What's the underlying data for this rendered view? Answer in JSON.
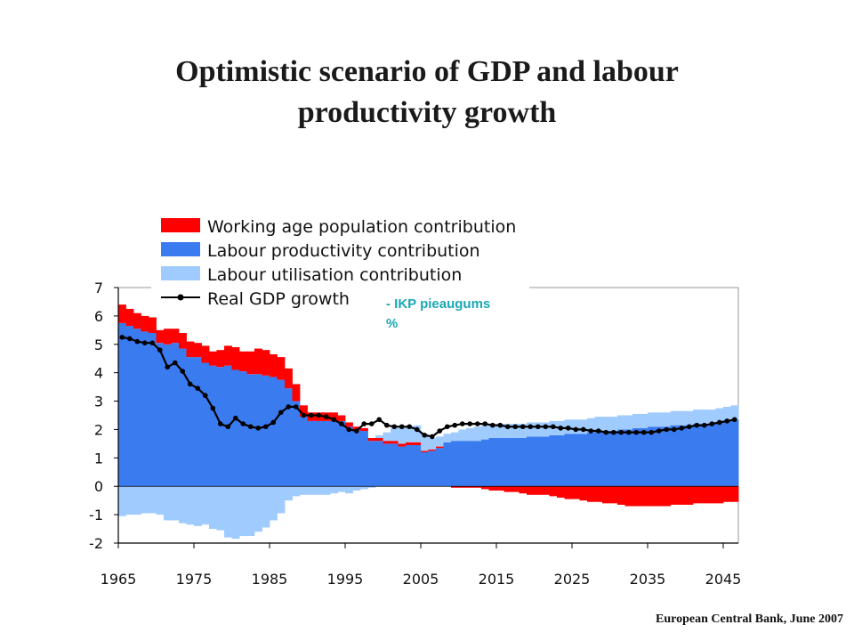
{
  "header": {
    "title_line1": "Optimistic scenario of  GDP and labour",
    "title_line2": "productivity growth"
  },
  "footer": {
    "source": "European Central Bank, June 2007"
  },
  "overlay": {
    "line1": "- IKP pieaugums",
    "line2": "%"
  },
  "colors": {
    "working_age": "#ff0000",
    "labour_productivity": "#3b7bf0",
    "labour_utilisation": "#9fcbff",
    "gdp_line": "#000000"
  },
  "chart_data": {
    "type": "bar",
    "title": "",
    "xlabel": "",
    "ylabel": "",
    "ylim": [
      -2,
      7
    ],
    "x_ticks": [
      1965,
      1975,
      1985,
      1995,
      2005,
      2015,
      2025,
      2035,
      2045
    ],
    "y_ticks": [
      7,
      6,
      5,
      4,
      3,
      2,
      1,
      0,
      -1,
      -2
    ],
    "legend_position": "top-left",
    "categories": [
      1965,
      1966,
      1967,
      1968,
      1969,
      1970,
      1971,
      1972,
      1973,
      1974,
      1975,
      1976,
      1977,
      1978,
      1979,
      1980,
      1981,
      1982,
      1983,
      1984,
      1985,
      1986,
      1987,
      1988,
      1989,
      1990,
      1991,
      1992,
      1993,
      1994,
      1995,
      1996,
      1997,
      1998,
      1999,
      2000,
      2001,
      2002,
      2003,
      2004,
      2005,
      2006,
      2007,
      2008,
      2009,
      2010,
      2011,
      2012,
      2013,
      2014,
      2015,
      2016,
      2017,
      2018,
      2019,
      2020,
      2021,
      2022,
      2023,
      2024,
      2025,
      2026,
      2027,
      2028,
      2029,
      2030,
      2031,
      2032,
      2033,
      2034,
      2035,
      2036,
      2037,
      2038,
      2039,
      2040,
      2041,
      2042,
      2043,
      2044,
      2045,
      2046
    ],
    "series": [
      {
        "name": "Working age population contribution",
        "kind": "stacked-bar",
        "values": [
          0.65,
          0.6,
          0.55,
          0.55,
          0.55,
          0.45,
          0.55,
          0.5,
          0.55,
          0.55,
          0.5,
          0.6,
          0.5,
          0.6,
          0.7,
          0.8,
          0.7,
          0.8,
          0.9,
          0.9,
          0.8,
          0.8,
          0.7,
          0.6,
          0.4,
          0.3,
          0.3,
          0.3,
          0.3,
          0.2,
          0.15,
          0.1,
          0.1,
          0.1,
          0.1,
          0.1,
          0.1,
          0.1,
          0.1,
          0.1,
          0.05,
          0.05,
          0.05,
          0.0,
          -0.05,
          -0.05,
          -0.05,
          -0.05,
          -0.1,
          -0.15,
          -0.15,
          -0.2,
          -0.2,
          -0.25,
          -0.3,
          -0.3,
          -0.3,
          -0.35,
          -0.4,
          -0.45,
          -0.45,
          -0.5,
          -0.55,
          -0.55,
          -0.6,
          -0.6,
          -0.65,
          -0.7,
          -0.7,
          -0.7,
          -0.7,
          -0.7,
          -0.7,
          -0.65,
          -0.65,
          -0.65,
          -0.6,
          -0.6,
          -0.6,
          -0.6,
          -0.55,
          -0.55
        ]
      },
      {
        "name": "Labour productivity contribution",
        "kind": "stacked-bar",
        "values": [
          5.75,
          5.65,
          5.55,
          5.45,
          5.4,
          5.05,
          5.0,
          5.05,
          4.85,
          4.55,
          4.55,
          4.35,
          4.25,
          4.2,
          4.25,
          4.1,
          4.05,
          3.95,
          3.95,
          3.9,
          3.85,
          3.75,
          3.45,
          3.0,
          2.45,
          2.3,
          2.3,
          2.3,
          2.3,
          2.3,
          2.1,
          2.0,
          1.95,
          1.6,
          1.6,
          1.5,
          1.5,
          1.4,
          1.45,
          1.45,
          1.2,
          1.25,
          1.35,
          1.55,
          1.6,
          1.6,
          1.6,
          1.6,
          1.65,
          1.7,
          1.7,
          1.7,
          1.7,
          1.7,
          1.75,
          1.75,
          1.75,
          1.8,
          1.8,
          1.85,
          1.85,
          1.85,
          1.9,
          1.95,
          1.95,
          1.95,
          2.0,
          2.0,
          2.05,
          2.05,
          2.1,
          2.1,
          2.1,
          2.15,
          2.15,
          2.15,
          2.2,
          2.2,
          2.2,
          2.25,
          2.3,
          2.35
        ]
      },
      {
        "name": "Labour utilisation contribution",
        "kind": "stacked-bar",
        "values": [
          -1.05,
          -1.0,
          -1.0,
          -0.95,
          -0.95,
          -1.0,
          -1.2,
          -1.2,
          -1.3,
          -1.35,
          -1.4,
          -1.35,
          -1.5,
          -1.55,
          -1.8,
          -1.85,
          -1.75,
          -1.75,
          -1.6,
          -1.45,
          -1.2,
          -0.95,
          -0.5,
          -0.35,
          -0.3,
          -0.3,
          -0.3,
          -0.3,
          -0.25,
          -0.2,
          -0.25,
          -0.15,
          -0.1,
          -0.05,
          0.1,
          0.3,
          0.45,
          0.55,
          0.55,
          0.6,
          0.6,
          0.4,
          0.35,
          0.3,
          0.3,
          0.4,
          0.45,
          0.5,
          0.5,
          0.5,
          0.5,
          0.5,
          0.5,
          0.5,
          0.5,
          0.5,
          0.5,
          0.5,
          0.5,
          0.5,
          0.5,
          0.5,
          0.5,
          0.5,
          0.5,
          0.5,
          0.5,
          0.5,
          0.5,
          0.5,
          0.5,
          0.5,
          0.5,
          0.5,
          0.5,
          0.5,
          0.5,
          0.5,
          0.5,
          0.5,
          0.5,
          0.5
        ]
      },
      {
        "name": "Real GDP growth",
        "kind": "line",
        "values": [
          5.25,
          5.2,
          5.1,
          5.05,
          5.05,
          4.8,
          4.2,
          4.35,
          4.05,
          3.6,
          3.45,
          3.2,
          2.75,
          2.2,
          2.1,
          2.4,
          2.2,
          2.1,
          2.05,
          2.1,
          2.25,
          2.6,
          2.8,
          2.8,
          2.5,
          2.5,
          2.5,
          2.45,
          2.35,
          2.2,
          2.0,
          1.95,
          2.2,
          2.2,
          2.35,
          2.15,
          2.1,
          2.1,
          2.1,
          2.0,
          1.8,
          1.75,
          1.95,
          2.1,
          2.15,
          2.2,
          2.2,
          2.2,
          2.2,
          2.15,
          2.15,
          2.1,
          2.1,
          2.1,
          2.1,
          2.1,
          2.1,
          2.1,
          2.05,
          2.05,
          2.0,
          2.0,
          1.95,
          1.95,
          1.9,
          1.9,
          1.9,
          1.9,
          1.9,
          1.9,
          1.9,
          1.95,
          2.0,
          2.0,
          2.05,
          2.1,
          2.15,
          2.15,
          2.2,
          2.25,
          2.3,
          2.35
        ]
      }
    ]
  }
}
